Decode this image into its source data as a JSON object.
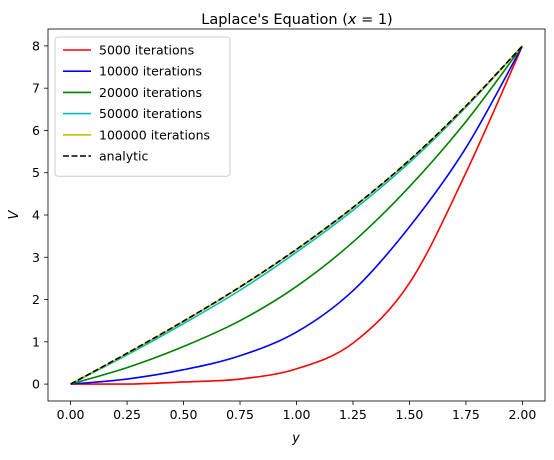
{
  "chart_data": {
    "type": "line",
    "title": "Laplace's Equation (x = 1)",
    "title_parts": {
      "prefix": "Laplace's Equation (",
      "variable": "x",
      "suffix": " = 1)"
    },
    "xlabel": "y",
    "ylabel": "V",
    "xlim": [
      -0.1,
      2.1
    ],
    "ylim": [
      -0.4,
      8.4
    ],
    "xticks": [
      0.0,
      0.25,
      0.5,
      0.75,
      1.0,
      1.25,
      1.5,
      1.75,
      2.0
    ],
    "xtick_labels": [
      "0.00",
      "0.25",
      "0.50",
      "0.75",
      "1.00",
      "1.25",
      "1.50",
      "1.75",
      "2.00"
    ],
    "yticks": [
      0,
      1,
      2,
      3,
      4,
      5,
      6,
      7,
      8
    ],
    "ytick_labels": [
      "0",
      "1",
      "2",
      "3",
      "4",
      "5",
      "6",
      "7",
      "8"
    ],
    "grid": false,
    "legend_position": "upper-left",
    "x": [
      0.0,
      0.25,
      0.5,
      0.75,
      1.0,
      1.25,
      1.5,
      1.75,
      2.0
    ],
    "series": [
      {
        "name": "5000 iterations",
        "color": "#ff0000",
        "style": "solid",
        "values": [
          0.0,
          0.0,
          0.05,
          0.12,
          0.36,
          0.97,
          2.39,
          5.0,
          8.0
        ]
      },
      {
        "name": "10000 iterations",
        "color": "#0000ff",
        "style": "solid",
        "values": [
          0.0,
          0.12,
          0.34,
          0.67,
          1.23,
          2.21,
          3.72,
          5.59,
          8.0
        ]
      },
      {
        "name": "20000 iterations",
        "color": "#008000",
        "style": "solid",
        "values": [
          0.0,
          0.39,
          0.89,
          1.5,
          2.31,
          3.36,
          4.67,
          6.21,
          8.0
        ]
      },
      {
        "name": "50000 iterations",
        "color": "#00bfbf",
        "style": "solid",
        "values": [
          0.0,
          0.69,
          1.43,
          2.22,
          3.12,
          4.11,
          5.24,
          6.55,
          8.0
        ]
      },
      {
        "name": "100000 iterations",
        "color": "#bfbf00",
        "style": "solid",
        "values": [
          0.0,
          0.72,
          1.48,
          2.29,
          3.18,
          4.17,
          5.29,
          6.57,
          8.0
        ]
      },
      {
        "name": "analytic",
        "color": "#000000",
        "style": "dashed",
        "values": [
          0.0,
          0.73,
          1.49,
          2.3,
          3.19,
          4.18,
          5.3,
          6.58,
          8.0
        ]
      }
    ]
  }
}
